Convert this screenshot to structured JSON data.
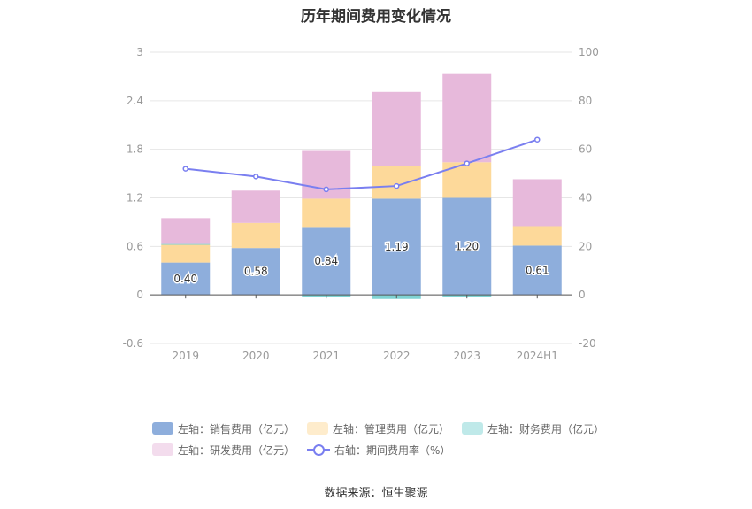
{
  "chart_data": {
    "type": "bar",
    "title": "历年期间费用变化情况",
    "categories": [
      "2019",
      "2020",
      "2021",
      "2022",
      "2023",
      "2024H1"
    ],
    "stacked": true,
    "left_axis": {
      "ylim": [
        -0.6,
        3
      ],
      "ticks": [
        "-0.6",
        "0",
        "0.6",
        "1.2",
        "1.8",
        "2.4",
        "3"
      ]
    },
    "right_axis": {
      "ylim": [
        -20,
        100
      ],
      "ticks": [
        "-20",
        "0",
        "20",
        "40",
        "60",
        "80",
        "100"
      ]
    },
    "grid": true,
    "legend_position": "bottom",
    "series": [
      {
        "name": "左轴：销售费用（亿元）",
        "axis": "left",
        "type": "bar",
        "color": "#8eaedc",
        "values": [
          0.4,
          0.58,
          0.84,
          1.19,
          1.2,
          0.61
        ],
        "labels": [
          "0.40",
          "0.58",
          "0.84",
          "1.19",
          "1.20",
          "0.61"
        ]
      },
      {
        "name": "左轴：管理费用（亿元）",
        "axis": "left",
        "type": "bar",
        "color": "#fdd99a",
        "values": [
          0.22,
          0.31,
          0.35,
          0.4,
          0.44,
          0.24
        ]
      },
      {
        "name": "左轴：财务费用（亿元）",
        "axis": "left",
        "type": "bar",
        "color": "#7fd3d3",
        "values": [
          0.01,
          0.0,
          -0.03,
          -0.05,
          -0.02,
          0.0
        ]
      },
      {
        "name": "左轴：研发费用（亿元）",
        "axis": "left",
        "type": "bar",
        "color": "#e7b9db",
        "values": [
          0.32,
          0.4,
          0.59,
          0.92,
          1.09,
          0.58
        ]
      },
      {
        "name": "右轴：期间费用率（%）",
        "axis": "right",
        "type": "line",
        "color": "#7a7ff0",
        "values": [
          52,
          48.8,
          43.5,
          44.9,
          54.2,
          64
        ]
      }
    ],
    "source": "数据来源：恒生聚源"
  }
}
